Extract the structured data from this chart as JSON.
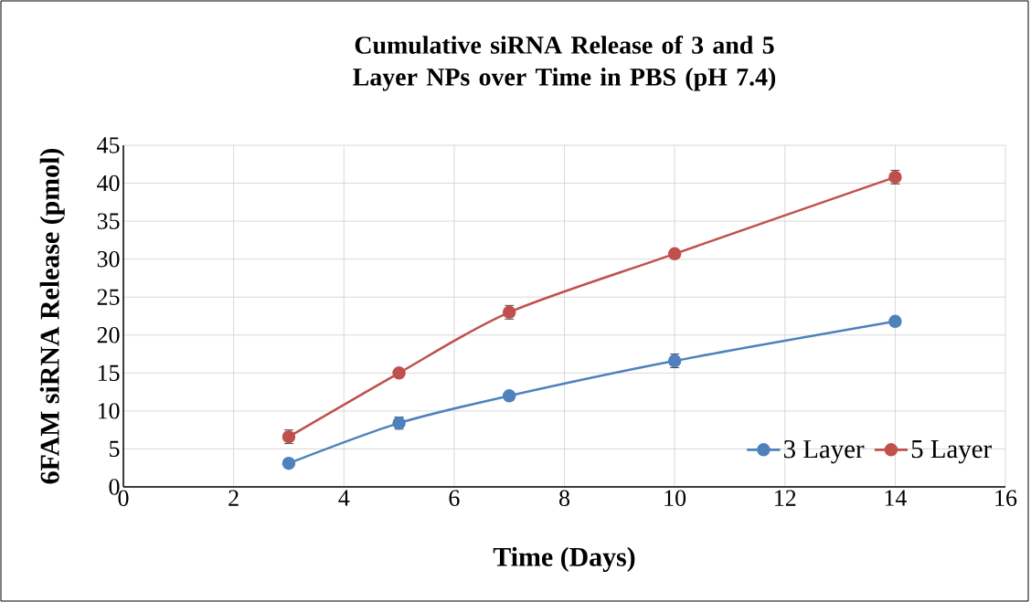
{
  "chart_data": {
    "type": "line",
    "title": "Cumulative siRNA Release of 3 and 5 Layer NPs over Time in PBS (pH 7.4)",
    "xlabel": "Time (Days)",
    "ylabel": "6FAM siRNA Release (pmol)",
    "x": [
      3,
      5,
      7,
      10,
      14
    ],
    "series": [
      {
        "name": "3 Layer",
        "color": "#4f81bd",
        "values": [
          3.1,
          8.4,
          12.0,
          16.6,
          21.8
        ],
        "errors": [
          null,
          0.8,
          null,
          0.9,
          null
        ]
      },
      {
        "name": "5 Layer",
        "color": "#c0504d",
        "values": [
          6.6,
          15.0,
          23.0,
          30.7,
          40.8
        ],
        "errors": [
          0.9,
          null,
          0.9,
          null,
          0.9
        ]
      }
    ],
    "xlim": [
      0,
      16
    ],
    "xticks": [
      0,
      2,
      4,
      6,
      8,
      10,
      12,
      14,
      16
    ],
    "ylim": [
      0,
      45
    ],
    "yticks": [
      0,
      5,
      10,
      15,
      20,
      25,
      30,
      35,
      40,
      45
    ],
    "grid": true,
    "legend": "bottom right",
    "marker": "circle",
    "line_style": "solid"
  }
}
